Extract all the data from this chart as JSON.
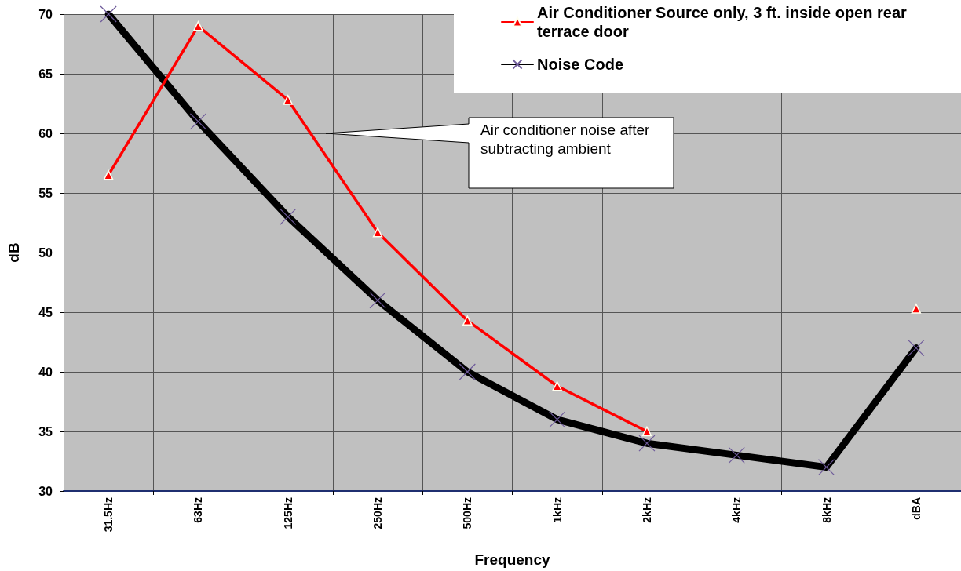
{
  "chart_data": {
    "type": "line",
    "xlabel": "Frequency",
    "ylabel": "dB",
    "categories": [
      "31.5Hz",
      "63Hz",
      "125Hz",
      "250Hz",
      "500Hz",
      "1kHz",
      "2kHz",
      "4kHz",
      "8kHz",
      "dBA"
    ],
    "series": [
      {
        "name": "Air Conditioner Source only, 3 ft. inside open rear terrace door",
        "color": "#ff0000",
        "marker": "triangle",
        "values": [
          56.5,
          69,
          62.8,
          51.7,
          44.3,
          38.8,
          35,
          null,
          null,
          45.3
        ]
      },
      {
        "name": "Noise Code",
        "color": "#000000",
        "marker": "cross",
        "values": [
          70,
          61,
          53,
          46,
          40,
          36,
          34,
          33,
          32,
          42
        ]
      }
    ],
    "ylim": [
      30,
      70
    ],
    "yticks": [
      30,
      35,
      40,
      45,
      50,
      55,
      60,
      65,
      70
    ],
    "grid": true,
    "legend": "top right",
    "annotations": [
      "Air conditioner noise after subtracting ambient"
    ]
  }
}
